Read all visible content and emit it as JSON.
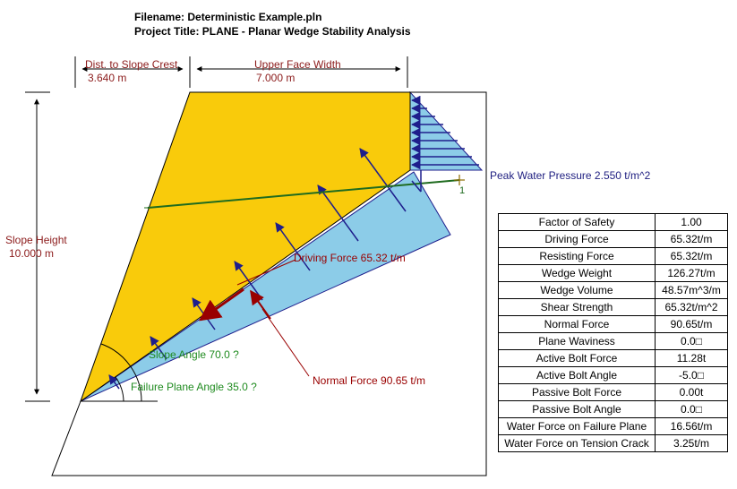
{
  "header": {
    "filename": "Filename: Deterministic Example.pln",
    "project_title": "Project Title: PLANE - Planar Wedge Stability Analysis"
  },
  "dimensions": {
    "dist_to_crest_label": "Dist. to Slope Crest",
    "dist_to_crest_value": "3.640 m",
    "upper_face_width_label": "Upper Face Width",
    "upper_face_width_value": "7.000 m",
    "slope_height_label": "Slope Height",
    "slope_height_value": "10.000 m"
  },
  "annotations": {
    "peak_water_pressure": "Peak Water Pressure 2.550 t/m^2",
    "driving_force": "Driving Force 65.32 t/m",
    "normal_force": "Normal Force 90.65 t/m",
    "slope_angle": "Slope Angle 70.0 ?",
    "failure_plane_angle": "Failure Plane Angle 35.0 ?",
    "bolt_number": "1"
  },
  "results": [
    {
      "label": "Factor of Safety",
      "value": "1.00"
    },
    {
      "label": "Driving Force",
      "value": "65.32t/m"
    },
    {
      "label": "Resisting Force",
      "value": "65.32t/m"
    },
    {
      "label": "Wedge Weight",
      "value": "126.27t/m"
    },
    {
      "label": "Wedge Volume",
      "value": "48.57m^3/m"
    },
    {
      "label": "Shear Strength",
      "value": "65.32t/m^2"
    },
    {
      "label": "Normal Force",
      "value": "90.65t/m"
    },
    {
      "label": "Plane Waviness",
      "value": "0.0□"
    },
    {
      "label": "Active Bolt Force",
      "value": "11.28t"
    },
    {
      "label": "Active Bolt Angle",
      "value": "-5.0□"
    },
    {
      "label": "Passive Bolt Force",
      "value": "0.00t"
    },
    {
      "label": "Passive Bolt Angle",
      "value": "0.0□"
    },
    {
      "label": "Water Force on Failure Plane",
      "value": "16.56t/m"
    },
    {
      "label": "Water Force on Tension Crack",
      "value": "3.25t/m"
    }
  ],
  "colors": {
    "wedge": "#f9cb0b",
    "water": "#8ccce8",
    "water_arrow": "#1e1e8c",
    "driving_force": "#990000",
    "bolt": "#1f6b1f",
    "dimension_text": "#8b1a1a",
    "angle_text": "#1f8b1f",
    "pressure_text": "#1e1e80"
  }
}
